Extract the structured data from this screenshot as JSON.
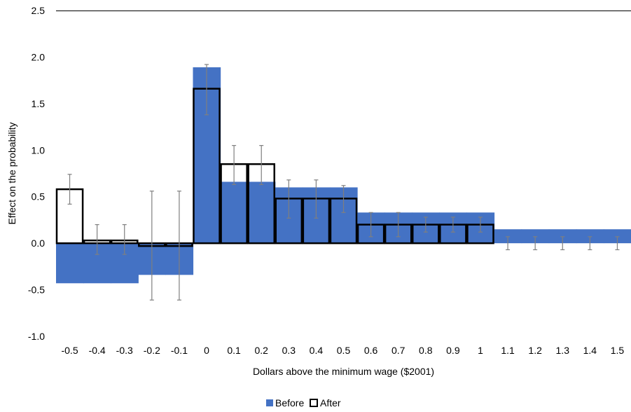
{
  "chart_data": {
    "type": "bar",
    "xlabel": "Dollars above the minimum wage ($2001)",
    "ylabel": "Effect on the probability",
    "ylim": [
      -1.0,
      2.5
    ],
    "yticks": [
      -1.0,
      -0.5,
      0.0,
      0.5,
      1.0,
      1.5,
      2.0,
      2.5
    ],
    "ytick_labels": [
      "-1.0",
      "-0.5",
      "0.0",
      "0.5",
      "1.0",
      "1.5",
      "2.0",
      "2.5"
    ],
    "categories": [
      "-0.5",
      "-0.4",
      "-0.3",
      "-0.2",
      "-0.1",
      "0",
      "0.1",
      "0.2",
      "0.3",
      "0.4",
      "0.5",
      "0.6",
      "0.7",
      "0.8",
      "0.9",
      "1",
      "1.1",
      "1.2",
      "1.3",
      "1.4",
      "1.5"
    ],
    "grid": false,
    "legend_position": "bottom",
    "series": [
      {
        "name": "Before",
        "style": "filled",
        "color": "#4472C4",
        "values": [
          -0.43,
          -0.43,
          -0.43,
          -0.34,
          -0.34,
          1.89,
          0.66,
          0.66,
          0.6,
          0.6,
          0.6,
          0.33,
          0.33,
          0.33,
          0.33,
          0.33,
          0.15,
          0.15,
          0.15,
          0.15,
          0.15
        ]
      },
      {
        "name": "After",
        "style": "outline",
        "color": "#000000",
        "values": [
          0.58,
          0.03,
          0.03,
          -0.03,
          -0.03,
          1.66,
          0.85,
          0.85,
          0.48,
          0.48,
          0.48,
          0.2,
          0.2,
          0.2,
          0.2,
          0.2,
          null,
          null,
          null,
          null,
          null
        ]
      }
    ],
    "error_bars": {
      "color": "#7f7f7f",
      "low": [
        0.42,
        -0.12,
        -0.12,
        -0.61,
        -0.61,
        1.38,
        0.63,
        0.63,
        0.27,
        0.27,
        0.33,
        0.07,
        0.07,
        0.12,
        0.12,
        0.12,
        -0.07,
        -0.07,
        -0.07,
        -0.07,
        -0.07
      ],
      "high": [
        0.74,
        0.2,
        0.2,
        0.56,
        0.56,
        1.92,
        1.05,
        1.05,
        0.68,
        0.68,
        0.62,
        0.33,
        0.33,
        0.28,
        0.28,
        0.28,
        0.07,
        0.07,
        0.07,
        0.07,
        0.07
      ]
    }
  }
}
